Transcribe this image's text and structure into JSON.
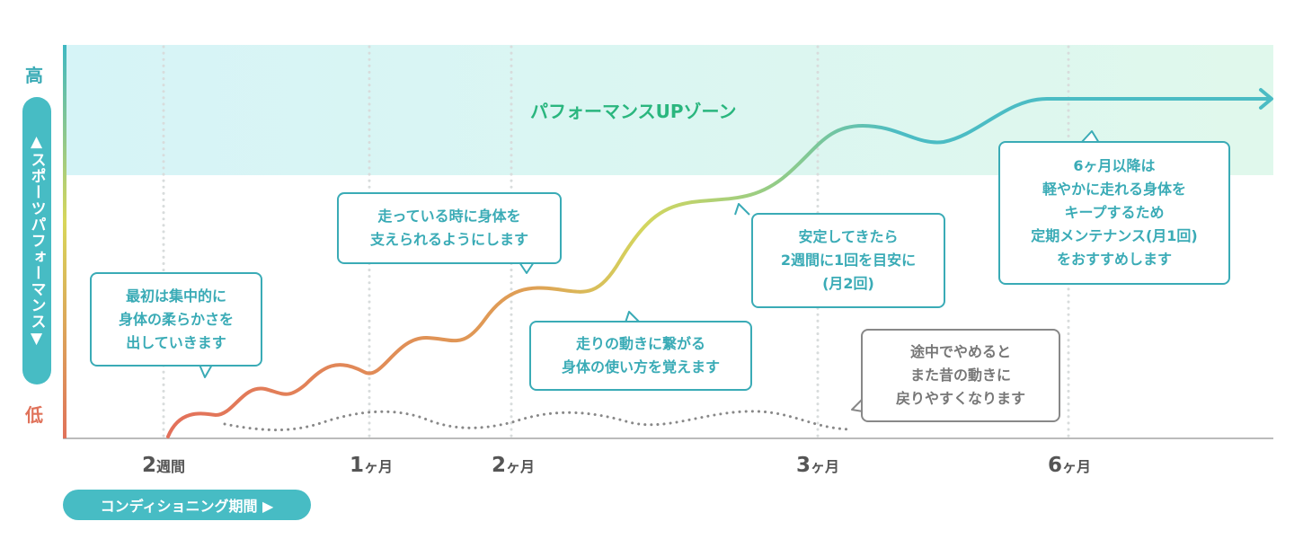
{
  "y_axis": {
    "high": "高",
    "low": "低",
    "label": "▲スポーツパフォーマンス▼"
  },
  "x_axis": {
    "label": "コンディショニング期間 ▶",
    "ticks": [
      {
        "num": "2",
        "unit": "週間"
      },
      {
        "num": "1",
        "unit": "ヶ月"
      },
      {
        "num": "2",
        "unit": "ヶ月"
      },
      {
        "num": "3",
        "unit": "ヶ月"
      },
      {
        "num": "6",
        "unit": "ヶ月"
      }
    ]
  },
  "zone_label": "パフォーマンスUPゾーン",
  "callouts": [
    "最初は集中的に\n身体の柔らかさを\n出していきます",
    "走っている時に身体を\n支えられるようにします",
    "走りの動きに繋がる\n身体の使い方を覚えます",
    "安定してきたら\n2週間に1回を目安に\n(月2回)",
    "6ヶ月以降は\n軽やかに走れる身体を\nキープするため\n定期メンテナンス(月1回)\nをおすすめします",
    "途中でやめると\nまた昔の動きに\n戻りやすくなります"
  ],
  "colors": {
    "teal": "#3aabb6",
    "red": "#e0725a",
    "green": "#2ab67e",
    "gray": "#888888"
  }
}
